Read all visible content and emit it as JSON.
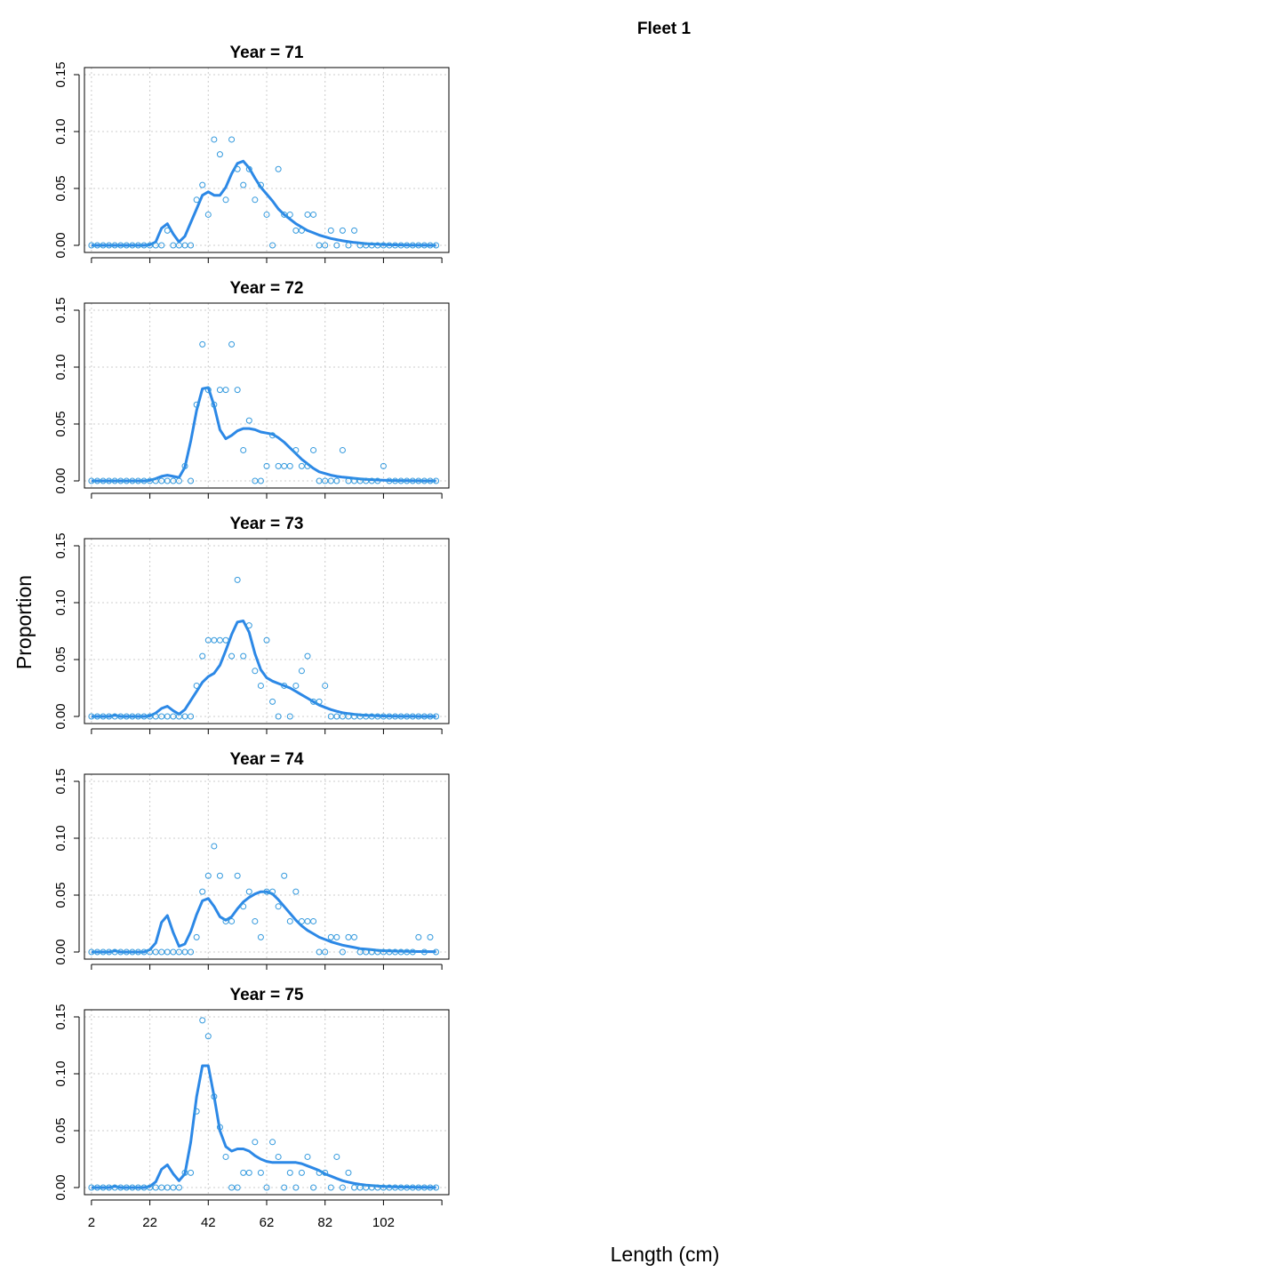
{
  "figure": {
    "title": "Fleet 1",
    "xlabel": "Length (cm)",
    "ylabel": "Proportion"
  },
  "colors": {
    "points": "#3399dd",
    "line": "#2c88e6",
    "grid": "#cccccc",
    "axis": "#000000"
  },
  "chart_data": [
    {
      "type": "scatter",
      "title": "Year = 71",
      "x": [
        2,
        4,
        6,
        8,
        10,
        12,
        14,
        16,
        18,
        20,
        22,
        24,
        26,
        28,
        30,
        32,
        34,
        36,
        38,
        40,
        42,
        44,
        46,
        48,
        50,
        52,
        54,
        56,
        58,
        60,
        62,
        64,
        66,
        68,
        70,
        72,
        74,
        76,
        78,
        80,
        82,
        84,
        86,
        88,
        90,
        92,
        94,
        96,
        98,
        100,
        102,
        104,
        106,
        108,
        110,
        112,
        114,
        116,
        118,
        120
      ],
      "obs": [
        0,
        0,
        0,
        0,
        0,
        0,
        0,
        0,
        0,
        0,
        0,
        0,
        0,
        0.013,
        0,
        0,
        0,
        0,
        0.04,
        0.053,
        0.027,
        0.093,
        0.08,
        0.04,
        0.093,
        0.067,
        0.053,
        0.067,
        0.04,
        0.053,
        0.027,
        0,
        0.067,
        0.027,
        0.027,
        0.013,
        0.013,
        0.027,
        0.027,
        0,
        0,
        0.013,
        0,
        0.013,
        0,
        0.013,
        0,
        0,
        0,
        0,
        0,
        0,
        0,
        0,
        0,
        0,
        0,
        0,
        0,
        0
      ],
      "exp": [
        0,
        0,
        0,
        0,
        0,
        0,
        0,
        0,
        0,
        0,
        0.0005,
        0.003,
        0.015,
        0.019,
        0.01,
        0.003,
        0.008,
        0.02,
        0.032,
        0.044,
        0.047,
        0.044,
        0.044,
        0.051,
        0.063,
        0.072,
        0.074,
        0.068,
        0.059,
        0.051,
        0.045,
        0.039,
        0.032,
        0.027,
        0.023,
        0.019,
        0.016,
        0.013,
        0.011,
        0.009,
        0.0075,
        0.006,
        0.005,
        0.004,
        0.0032,
        0.0025,
        0.002,
        0.0015,
        0.0012,
        0.0009,
        0.0007,
        0.0005,
        0.0004,
        0.0003,
        0.0002,
        0.0001,
        0.0001,
        0.0001,
        0,
        0
      ],
      "xticks": [
        2,
        22,
        42,
        62,
        82,
        102
      ],
      "yticks": [
        "0.00",
        "0.05",
        "0.10",
        "0.15"
      ],
      "ylim": [
        0,
        0.15
      ],
      "grid": true
    },
    {
      "type": "scatter",
      "title": "Year = 72",
      "x": [
        2,
        4,
        6,
        8,
        10,
        12,
        14,
        16,
        18,
        20,
        22,
        24,
        26,
        28,
        30,
        32,
        34,
        36,
        38,
        40,
        42,
        44,
        46,
        48,
        50,
        52,
        54,
        56,
        58,
        60,
        62,
        64,
        66,
        68,
        70,
        72,
        74,
        76,
        78,
        80,
        82,
        84,
        86,
        88,
        90,
        92,
        94,
        96,
        98,
        100,
        102,
        104,
        106,
        108,
        110,
        112,
        114,
        116,
        118,
        120
      ],
      "obs": [
        0,
        0,
        0,
        0,
        0,
        0,
        0,
        0,
        0,
        0,
        0,
        0,
        0,
        0,
        0,
        0,
        0.013,
        0,
        0.067,
        0.12,
        0.08,
        0.067,
        0.08,
        0.08,
        0.12,
        0.08,
        0.027,
        0.053,
        0,
        0,
        0.013,
        0.04,
        0.013,
        0.013,
        0.013,
        0.027,
        0.013,
        0.013,
        0.027,
        0,
        0,
        0,
        0,
        0.027,
        0,
        0,
        0,
        0,
        0,
        0,
        0.013,
        0,
        0,
        0,
        0,
        0,
        0,
        0,
        0,
        0
      ],
      "exp": [
        0,
        0,
        0,
        0,
        0,
        0,
        0,
        0,
        0,
        0,
        0.0005,
        0.002,
        0.004,
        0.005,
        0.004,
        0.003,
        0.012,
        0.035,
        0.062,
        0.081,
        0.082,
        0.066,
        0.045,
        0.037,
        0.04,
        0.044,
        0.046,
        0.046,
        0.045,
        0.043,
        0.042,
        0.041,
        0.038,
        0.034,
        0.029,
        0.024,
        0.019,
        0.015,
        0.011,
        0.008,
        0.0065,
        0.005,
        0.004,
        0.0033,
        0.0028,
        0.0023,
        0.0018,
        0.0014,
        0.0011,
        0.0008,
        0.0006,
        0.0004,
        0.0003,
        0.0002,
        0.0002,
        0.0001,
        0.0001,
        0,
        0,
        0
      ],
      "xticks": [
        2,
        22,
        42,
        62,
        82,
        102
      ],
      "yticks": [
        "0.00",
        "0.05",
        "0.10",
        "0.15"
      ],
      "ylim": [
        0,
        0.15
      ],
      "grid": true
    },
    {
      "type": "scatter",
      "title": "Year = 73",
      "x": [
        2,
        4,
        6,
        8,
        10,
        12,
        14,
        16,
        18,
        20,
        22,
        24,
        26,
        28,
        30,
        32,
        34,
        36,
        38,
        40,
        42,
        44,
        46,
        48,
        50,
        52,
        54,
        56,
        58,
        60,
        62,
        64,
        66,
        68,
        70,
        72,
        74,
        76,
        78,
        80,
        82,
        84,
        86,
        88,
        90,
        92,
        94,
        96,
        98,
        100,
        102,
        104,
        106,
        108,
        110,
        112,
        114,
        116,
        118,
        120
      ],
      "obs": [
        0,
        0,
        0,
        0,
        0,
        0,
        0,
        0,
        0,
        0,
        0,
        0,
        0,
        0,
        0,
        0,
        0,
        0,
        0.027,
        0.053,
        0.067,
        0.067,
        0.067,
        0.067,
        0.053,
        0.12,
        0.053,
        0.08,
        0.04,
        0.027,
        0.067,
        0.013,
        0,
        0.027,
        0,
        0.027,
        0.04,
        0.053,
        0.013,
        0.013,
        0.027,
        0,
        0,
        0,
        0,
        0,
        0,
        0,
        0,
        0,
        0,
        0,
        0,
        0,
        0,
        0,
        0,
        0,
        0,
        0
      ],
      "exp": [
        0,
        0,
        0,
        0,
        0.001,
        0,
        0,
        0,
        0,
        0,
        0.0005,
        0.003,
        0.007,
        0.009,
        0.005,
        0.002,
        0.006,
        0.014,
        0.022,
        0.03,
        0.035,
        0.038,
        0.045,
        0.058,
        0.072,
        0.083,
        0.084,
        0.074,
        0.055,
        0.041,
        0.034,
        0.031,
        0.029,
        0.027,
        0.025,
        0.022,
        0.019,
        0.016,
        0.013,
        0.01,
        0.008,
        0.006,
        0.0045,
        0.0033,
        0.0025,
        0.0019,
        0.0014,
        0.001,
        0.0008,
        0.0006,
        0.0004,
        0.0003,
        0.0002,
        0.0001,
        0.0001,
        0.0001,
        0,
        0,
        0,
        0
      ],
      "xticks": [
        2,
        22,
        42,
        62,
        82,
        102
      ],
      "yticks": [
        "0.00",
        "0.05",
        "0.10",
        "0.15"
      ],
      "ylim": [
        0,
        0.15
      ],
      "grid": true
    },
    {
      "type": "scatter",
      "title": "Year = 74",
      "x": [
        2,
        4,
        6,
        8,
        10,
        12,
        14,
        16,
        18,
        20,
        22,
        24,
        26,
        28,
        30,
        32,
        34,
        36,
        38,
        40,
        42,
        44,
        46,
        48,
        50,
        52,
        54,
        56,
        58,
        60,
        62,
        64,
        66,
        68,
        70,
        72,
        74,
        76,
        78,
        80,
        82,
        84,
        86,
        88,
        90,
        92,
        94,
        96,
        98,
        100,
        102,
        104,
        106,
        108,
        110,
        112,
        114,
        116,
        118,
        120
      ],
      "obs": [
        0,
        0,
        0,
        0,
        0,
        0,
        0,
        0,
        0,
        0,
        0,
        0,
        0,
        0,
        0,
        0,
        0,
        0,
        0.013,
        0.053,
        0.067,
        0.093,
        0.067,
        0.027,
        0.027,
        0.067,
        0.04,
        0.053,
        0.027,
        0.013,
        0.053,
        0.053,
        0.04,
        0.067,
        0.027,
        0.053,
        0.027,
        0.027,
        0.027,
        0,
        0,
        0.013,
        0.013,
        0,
        0.013,
        0.013,
        0,
        0,
        0,
        0,
        0,
        0,
        0,
        0,
        0,
        0,
        0.013,
        0,
        0.013,
        0
      ],
      "exp": [
        0,
        0,
        0,
        0,
        0.001,
        0,
        0,
        0,
        0,
        0,
        0.002,
        0.008,
        0.026,
        0.032,
        0.017,
        0.005,
        0.007,
        0.018,
        0.033,
        0.045,
        0.047,
        0.04,
        0.031,
        0.028,
        0.031,
        0.038,
        0.044,
        0.048,
        0.051,
        0.053,
        0.053,
        0.051,
        0.046,
        0.04,
        0.034,
        0.028,
        0.023,
        0.019,
        0.016,
        0.013,
        0.011,
        0.009,
        0.0075,
        0.006,
        0.005,
        0.004,
        0.003,
        0.0025,
        0.002,
        0.0015,
        0.0012,
        0.001,
        0.0008,
        0.0007,
        0.0006,
        0.0005,
        0.0004,
        0.0004,
        0.0003,
        0.0003
      ],
      "xticks": [
        2,
        22,
        42,
        62,
        82,
        102
      ],
      "yticks": [
        "0.00",
        "0.05",
        "0.10",
        "0.15"
      ],
      "ylim": [
        0,
        0.15
      ],
      "grid": true
    },
    {
      "type": "scatter",
      "title": "Year = 75",
      "x": [
        2,
        4,
        6,
        8,
        10,
        12,
        14,
        16,
        18,
        20,
        22,
        24,
        26,
        28,
        30,
        32,
        34,
        36,
        38,
        40,
        42,
        44,
        46,
        48,
        50,
        52,
        54,
        56,
        58,
        60,
        62,
        64,
        66,
        68,
        70,
        72,
        74,
        76,
        78,
        80,
        82,
        84,
        86,
        88,
        90,
        92,
        94,
        96,
        98,
        100,
        102,
        104,
        106,
        108,
        110,
        112,
        114,
        116,
        118,
        120
      ],
      "obs": [
        0,
        0,
        0,
        0,
        0,
        0,
        0,
        0,
        0,
        0,
        0,
        0,
        0,
        0,
        0,
        0,
        0.013,
        0.013,
        0.067,
        0.147,
        0.133,
        0.08,
        0.053,
        0.027,
        0,
        0,
        0.013,
        0.013,
        0.04,
        0.013,
        0,
        0.04,
        0.027,
        0,
        0.013,
        0,
        0.013,
        0.027,
        0,
        0.013,
        0.013,
        0,
        0.027,
        0,
        0.013,
        0,
        0,
        0,
        0,
        0,
        0,
        0,
        0,
        0,
        0,
        0,
        0,
        0,
        0,
        0
      ],
      "exp": [
        0,
        0,
        0,
        0,
        0.001,
        0,
        0,
        0,
        0,
        0,
        0.001,
        0.005,
        0.016,
        0.02,
        0.012,
        0.006,
        0.012,
        0.04,
        0.08,
        0.107,
        0.107,
        0.08,
        0.05,
        0.036,
        0.032,
        0.034,
        0.034,
        0.032,
        0.028,
        0.025,
        0.023,
        0.022,
        0.022,
        0.022,
        0.022,
        0.022,
        0.021,
        0.019,
        0.017,
        0.015,
        0.012,
        0.01,
        0.008,
        0.006,
        0.0048,
        0.0036,
        0.0028,
        0.0022,
        0.0017,
        0.0013,
        0.001,
        0.0008,
        0.0006,
        0.0005,
        0.0004,
        0.0003,
        0.0002,
        0.0002,
        0.0001,
        0.0001
      ],
      "xticks": [
        2,
        22,
        42,
        62,
        82,
        102
      ],
      "yticks": [
        "0.00",
        "0.05",
        "0.10",
        "0.15"
      ],
      "ylim": [
        0,
        0.15
      ],
      "grid": true
    }
  ]
}
